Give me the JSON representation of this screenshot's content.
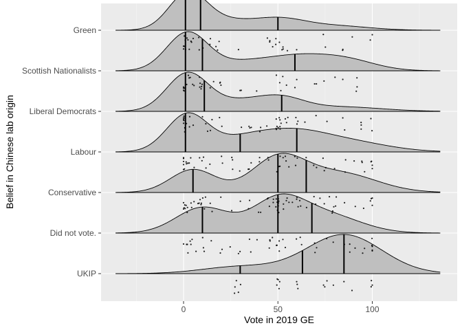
{
  "chart_data": {
    "type": "ridgeline",
    "title": "",
    "xlabel": "Vote in 2019 GE",
    "ylabel": "Belief in Chinese lab origin",
    "xlim": [
      -44,
      144
    ],
    "x_ticks": [
      0,
      50,
      100
    ],
    "x_tick_labels": [
      "0",
      "50",
      "100"
    ],
    "grid": true,
    "background": "#ebebeb",
    "fill_color": "#bfbfbf",
    "categories": [
      "UKIP",
      "Did not vote.",
      "Conservative",
      "Labour",
      "Liberal Democrats",
      "Scottish Nationalists",
      "Green"
    ],
    "series": [
      {
        "category": "UKIP",
        "density_peaks": [
          [
            30,
            0.18,
            20
          ],
          [
            85,
            1.0,
            20
          ]
        ],
        "quantiles": [
          30,
          63,
          85
        ],
        "points": [
          50,
          30,
          50,
          85,
          28,
          75,
          100,
          90,
          50,
          60,
          80
        ]
      },
      {
        "category": "Did not vote.",
        "density_peaks": [
          [
            10,
            0.72,
            14
          ],
          [
            50,
            0.9,
            14
          ],
          [
            76,
            0.5,
            18
          ]
        ],
        "quantiles": [
          10,
          50,
          68
        ],
        "points": [
          0,
          2,
          4,
          6,
          10,
          15,
          20,
          25,
          30,
          35,
          40,
          45,
          48,
          50,
          50,
          51,
          52,
          55,
          60,
          62,
          70,
          75,
          80,
          85,
          88,
          90,
          95,
          100,
          100
        ]
      },
      {
        "category": "Conservative",
        "density_peaks": [
          [
            5,
            0.68,
            12
          ],
          [
            50,
            0.98,
            14
          ],
          [
            82,
            0.58,
            20
          ]
        ],
        "quantiles": [
          5,
          50,
          65
        ],
        "points": [
          0,
          0,
          1,
          2,
          3,
          5,
          5,
          8,
          10,
          12,
          15,
          20,
          25,
          30,
          35,
          40,
          45,
          48,
          50,
          50,
          50,
          50,
          52,
          55,
          58,
          60,
          62,
          65,
          70,
          72,
          75,
          78,
          80,
          85,
          90,
          95,
          100,
          100,
          100
        ]
      },
      {
        "category": "Labour",
        "density_peaks": [
          [
            2,
            1.0,
            11
          ],
          [
            30,
            0.25,
            14
          ],
          [
            55,
            0.47,
            18
          ],
          [
            85,
            0.28,
            22
          ]
        ],
        "quantiles": [
          1,
          30,
          60
        ],
        "points": [
          0,
          0,
          0,
          1,
          2,
          3,
          5,
          8,
          10,
          12,
          15,
          20,
          25,
          30,
          35,
          40,
          45,
          50,
          50,
          50,
          52,
          55,
          60,
          65,
          70,
          75,
          80,
          85,
          90,
          95,
          100,
          100
        ]
      },
      {
        "category": "Liberal Democrats",
        "density_peaks": [
          [
            2,
            0.98,
            11
          ],
          [
            30,
            0.25,
            14
          ],
          [
            52,
            0.3,
            12
          ],
          [
            82,
            0.12,
            22
          ]
        ],
        "quantiles": [
          1,
          11,
          52
        ],
        "points": [
          0,
          0,
          0,
          1,
          2,
          4,
          6,
          10,
          12,
          15,
          20,
          30,
          35,
          40,
          45,
          50,
          50,
          51,
          52,
          55,
          60,
          65,
          70,
          75,
          85,
          95,
          100
        ]
      },
      {
        "category": "Scottish Nationalists",
        "density_peaks": [
          [
            2,
            0.95,
            11
          ],
          [
            30,
            0.18,
            14
          ],
          [
            58,
            0.32,
            16
          ],
          [
            85,
            0.28,
            16
          ]
        ],
        "quantiles": [
          1,
          10,
          59
        ],
        "points": [
          0,
          0,
          2,
          4,
          6,
          8,
          10,
          15,
          20,
          30,
          38,
          50,
          52,
          55,
          60,
          70,
          75,
          80,
          85,
          92
        ]
      },
      {
        "category": "Green",
        "density_peaks": [
          [
            2,
            0.95,
            10
          ],
          [
            20,
            0.25,
            14
          ],
          [
            50,
            0.3,
            14
          ],
          [
            80,
            0.12,
            18
          ]
        ],
        "quantiles": [
          1,
          9,
          50
        ],
        "points": [
          0,
          0,
          1,
          3,
          5,
          8,
          10,
          15,
          18,
          30,
          45,
          48,
          50,
          52,
          55,
          60,
          75,
          85,
          90,
          100
        ]
      }
    ]
  }
}
